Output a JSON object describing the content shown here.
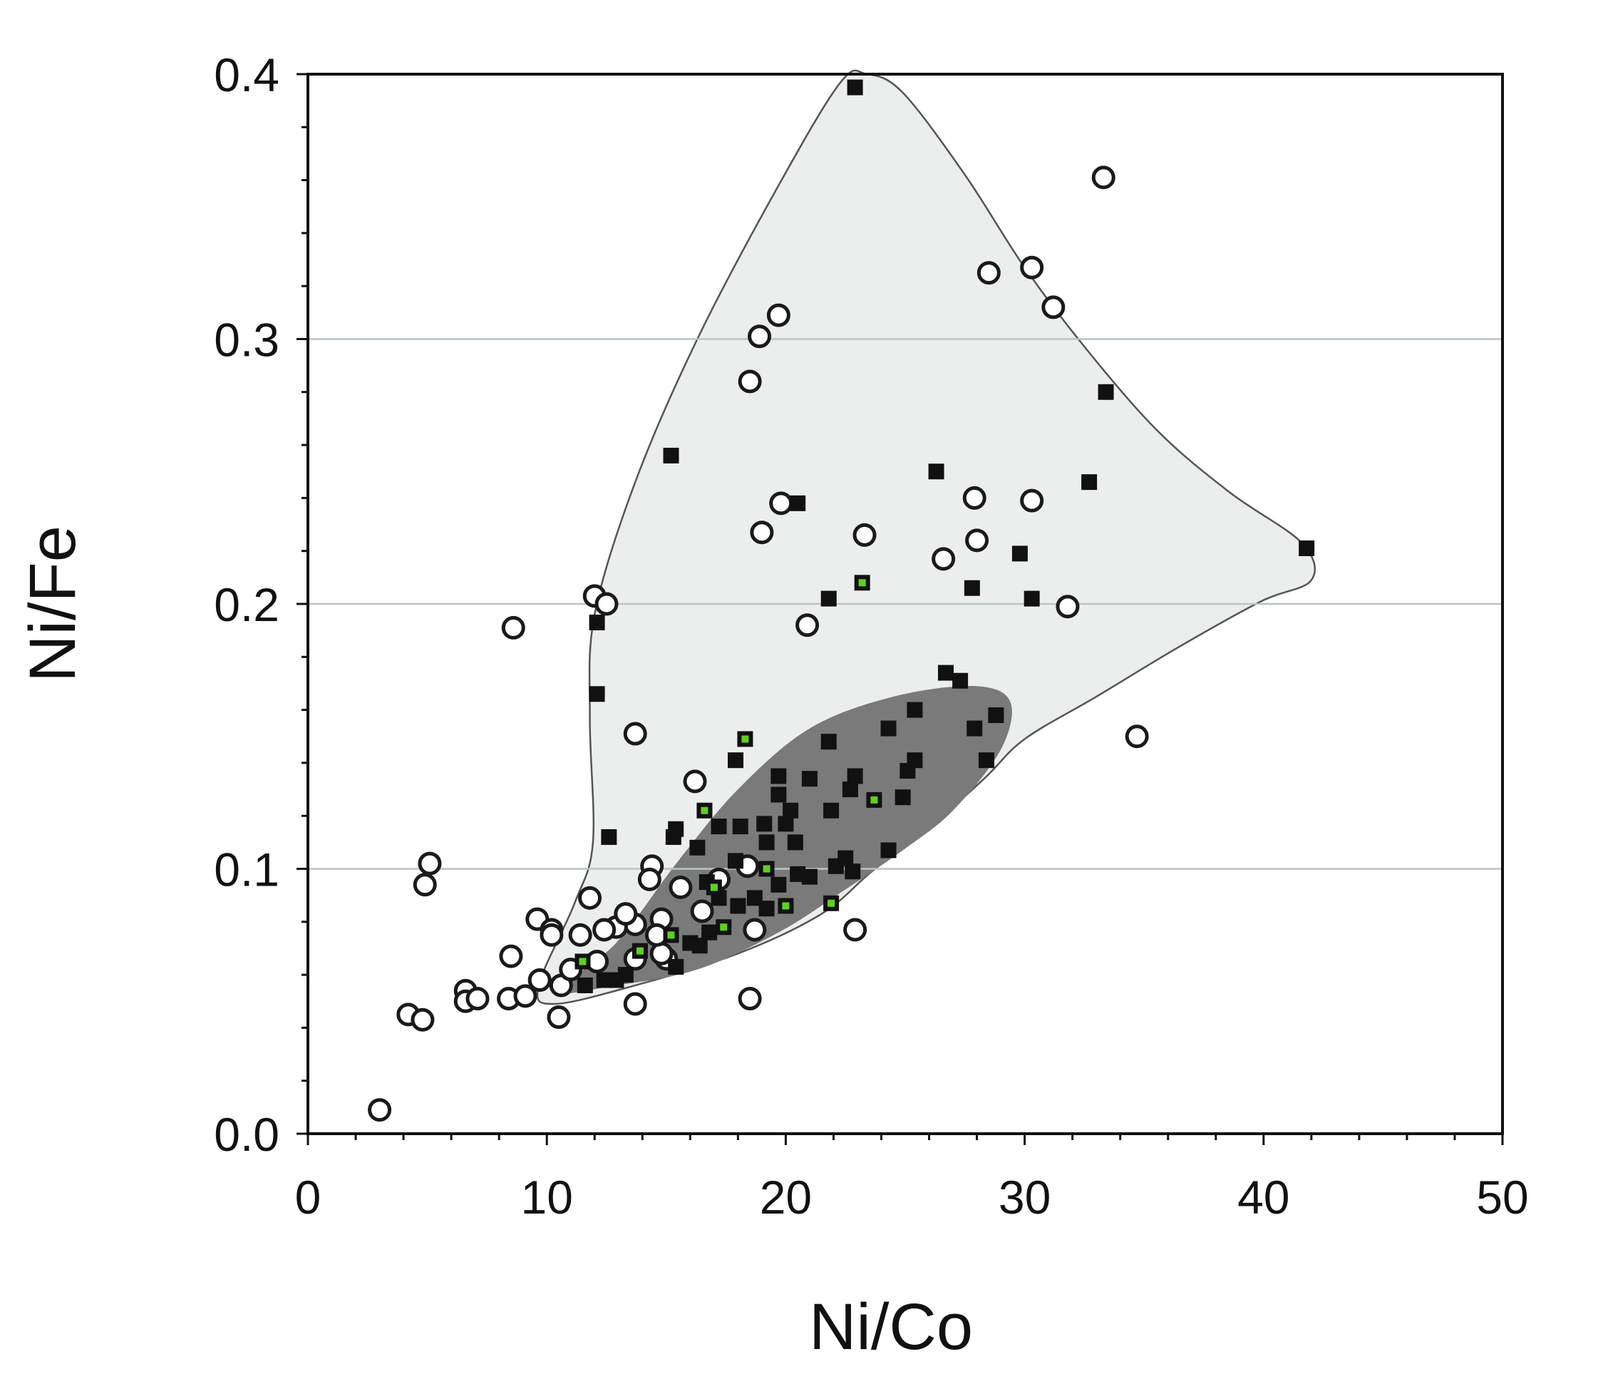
{
  "chart_data": {
    "type": "scatter",
    "title": "",
    "xlabel": "Ni/Co",
    "ylabel": "Ni/Fe",
    "xlim": [
      0,
      50
    ],
    "ylim": [
      0,
      0.4
    ],
    "xticks": [
      "0",
      "10",
      "20",
      "30",
      "40",
      "50"
    ],
    "yticks": [
      "0.0",
      "0.1",
      "0.2",
      "0.3",
      "0.4"
    ],
    "xtick_values": [
      0,
      10,
      20,
      30,
      40,
      50
    ],
    "ytick_values": [
      0,
      0.1,
      0.2,
      0.3,
      0.4
    ],
    "grid": "horizontal at 0.1, 0.2, 0.3",
    "colors": {
      "light_field": "#eceeee",
      "dark_field": "#7a7a7a",
      "square": "#111111",
      "green": "#5fd11e",
      "grid": "#b9c4c4"
    },
    "regions": [
      {
        "name": "light field",
        "polygon": [
          [
            9.66,
            0.056
          ],
          [
            11.16,
            0.087
          ],
          [
            11.93,
            0.11
          ],
          [
            11.8,
            0.157
          ],
          [
            12.0,
            0.196
          ],
          [
            13.7,
            0.246
          ],
          [
            16.3,
            0.3
          ],
          [
            19.7,
            0.358
          ],
          [
            22.3,
            0.397
          ],
          [
            23.4,
            0.4
          ],
          [
            24.9,
            0.393
          ],
          [
            27.5,
            0.362
          ],
          [
            30.0,
            0.327
          ],
          [
            32.6,
            0.296
          ],
          [
            35.6,
            0.265
          ],
          [
            38.6,
            0.242
          ],
          [
            41.6,
            0.223
          ],
          [
            42.0,
            0.209
          ],
          [
            39.9,
            0.201
          ],
          [
            36.5,
            0.184
          ],
          [
            33.0,
            0.165
          ],
          [
            30.0,
            0.149
          ],
          [
            28.3,
            0.134
          ],
          [
            25.8,
            0.114
          ],
          [
            23.6,
            0.099
          ],
          [
            21.5,
            0.083
          ],
          [
            18.0,
            0.068
          ],
          [
            13.7,
            0.056
          ],
          [
            10.3,
            0.049
          ]
        ]
      },
      {
        "name": "dark field",
        "polygon": [
          [
            10.5,
            0.054
          ],
          [
            12.9,
            0.072
          ],
          [
            15.5,
            0.103
          ],
          [
            18.0,
            0.13
          ],
          [
            21.0,
            0.153
          ],
          [
            24.5,
            0.165
          ],
          [
            27.9,
            0.169
          ],
          [
            29.4,
            0.163
          ],
          [
            29.0,
            0.145
          ],
          [
            27.0,
            0.122
          ],
          [
            24.9,
            0.107
          ],
          [
            22.3,
            0.091
          ],
          [
            19.7,
            0.076
          ],
          [
            16.3,
            0.062
          ],
          [
            12.9,
            0.056
          ]
        ]
      }
    ],
    "series": [
      {
        "name": "open circles",
        "marker": "circle-open",
        "points": [
          [
            33.3,
            0.361
          ],
          [
            28.5,
            0.325
          ],
          [
            30.3,
            0.327
          ],
          [
            31.2,
            0.312
          ],
          [
            19.7,
            0.309
          ],
          [
            18.9,
            0.301
          ],
          [
            18.5,
            0.284
          ],
          [
            19.8,
            0.238
          ],
          [
            19.0,
            0.227
          ],
          [
            23.3,
            0.226
          ],
          [
            27.9,
            0.24
          ],
          [
            30.3,
            0.239
          ],
          [
            28.0,
            0.224
          ],
          [
            26.6,
            0.217
          ],
          [
            31.8,
            0.199
          ],
          [
            20.9,
            0.192
          ],
          [
            12.0,
            0.203
          ],
          [
            12.5,
            0.2
          ],
          [
            8.6,
            0.191
          ],
          [
            13.7,
            0.151
          ],
          [
            34.7,
            0.15
          ],
          [
            16.2,
            0.133
          ],
          [
            5.1,
            0.102
          ],
          [
            4.9,
            0.094
          ],
          [
            3.0,
            0.009
          ],
          [
            4.2,
            0.045
          ],
          [
            4.8,
            0.043
          ],
          [
            6.6,
            0.054
          ],
          [
            6.6,
            0.05
          ],
          [
            7.1,
            0.051
          ],
          [
            8.4,
            0.051
          ],
          [
            9.1,
            0.052
          ],
          [
            10.5,
            0.044
          ],
          [
            8.5,
            0.067
          ],
          [
            9.6,
            0.081
          ],
          [
            10.2,
            0.077
          ],
          [
            10.2,
            0.075
          ],
          [
            9.7,
            0.058
          ],
          [
            10.6,
            0.056
          ],
          [
            11.8,
            0.089
          ],
          [
            13.7,
            0.049
          ],
          [
            18.5,
            0.051
          ],
          [
            22.9,
            0.077
          ],
          [
            18.7,
            0.077
          ],
          [
            18.4,
            0.101
          ],
          [
            15.6,
            0.093
          ],
          [
            16.5,
            0.084
          ],
          [
            14.4,
            0.101
          ],
          [
            14.3,
            0.096
          ],
          [
            13.7,
            0.079
          ],
          [
            12.9,
            0.078
          ],
          [
            13.3,
            0.083
          ],
          [
            14.8,
            0.081
          ],
          [
            15.0,
            0.066
          ],
          [
            14.8,
            0.068
          ],
          [
            12.1,
            0.065
          ],
          [
            12.4,
            0.077
          ],
          [
            13.7,
            0.066
          ],
          [
            11.0,
            0.062
          ],
          [
            11.4,
            0.075
          ],
          [
            14.6,
            0.075
          ],
          [
            17.2,
            0.096
          ]
        ]
      },
      {
        "name": "filled squares",
        "marker": "square-filled",
        "points": [
          [
            22.9,
            0.395
          ],
          [
            33.4,
            0.28
          ],
          [
            15.2,
            0.256
          ],
          [
            26.3,
            0.25
          ],
          [
            20.5,
            0.238
          ],
          [
            32.7,
            0.246
          ],
          [
            41.8,
            0.221
          ],
          [
            29.8,
            0.219
          ],
          [
            27.8,
            0.206
          ],
          [
            21.8,
            0.202
          ],
          [
            30.3,
            0.202
          ],
          [
            12.1,
            0.193
          ],
          [
            12.1,
            0.166
          ],
          [
            26.7,
            0.174
          ],
          [
            27.3,
            0.171
          ],
          [
            28.8,
            0.158
          ],
          [
            27.9,
            0.153
          ],
          [
            25.4,
            0.16
          ],
          [
            24.3,
            0.153
          ],
          [
            21.8,
            0.148
          ],
          [
            17.9,
            0.141
          ],
          [
            28.4,
            0.141
          ],
          [
            25.4,
            0.141
          ],
          [
            25.1,
            0.137
          ],
          [
            22.9,
            0.135
          ],
          [
            21.0,
            0.134
          ],
          [
            19.7,
            0.135
          ],
          [
            19.7,
            0.128
          ],
          [
            24.9,
            0.127
          ],
          [
            22.7,
            0.13
          ],
          [
            21.9,
            0.122
          ],
          [
            20.2,
            0.122
          ],
          [
            12.6,
            0.112
          ],
          [
            15.4,
            0.115
          ],
          [
            15.3,
            0.112
          ],
          [
            16.3,
            0.108
          ],
          [
            17.2,
            0.116
          ],
          [
            18.1,
            0.116
          ],
          [
            19.1,
            0.117
          ],
          [
            20.0,
            0.117
          ],
          [
            20.4,
            0.11
          ],
          [
            19.2,
            0.11
          ],
          [
            24.3,
            0.107
          ],
          [
            22.5,
            0.104
          ],
          [
            22.8,
            0.099
          ],
          [
            22.1,
            0.101
          ],
          [
            21.0,
            0.097
          ],
          [
            20.5,
            0.098
          ],
          [
            19.7,
            0.094
          ],
          [
            17.9,
            0.103
          ],
          [
            18.7,
            0.089
          ],
          [
            18.0,
            0.086
          ],
          [
            17.2,
            0.089
          ],
          [
            16.8,
            0.076
          ],
          [
            16.4,
            0.071
          ],
          [
            16.0,
            0.072
          ],
          [
            15.4,
            0.063
          ],
          [
            13.3,
            0.06
          ],
          [
            12.9,
            0.058
          ],
          [
            12.4,
            0.058
          ],
          [
            11.6,
            0.056
          ],
          [
            16.7,
            0.095
          ],
          [
            19.2,
            0.085
          ]
        ]
      },
      {
        "name": "green-centred squares",
        "marker": "square-green",
        "points": [
          [
            23.2,
            0.208
          ],
          [
            18.3,
            0.149
          ],
          [
            16.6,
            0.122
          ],
          [
            23.7,
            0.126
          ],
          [
            19.2,
            0.1
          ],
          [
            20.0,
            0.086
          ],
          [
            21.9,
            0.087
          ],
          [
            17.0,
            0.093
          ],
          [
            17.4,
            0.078
          ],
          [
            15.2,
            0.075
          ],
          [
            13.9,
            0.069
          ],
          [
            11.5,
            0.065
          ]
        ]
      }
    ]
  }
}
